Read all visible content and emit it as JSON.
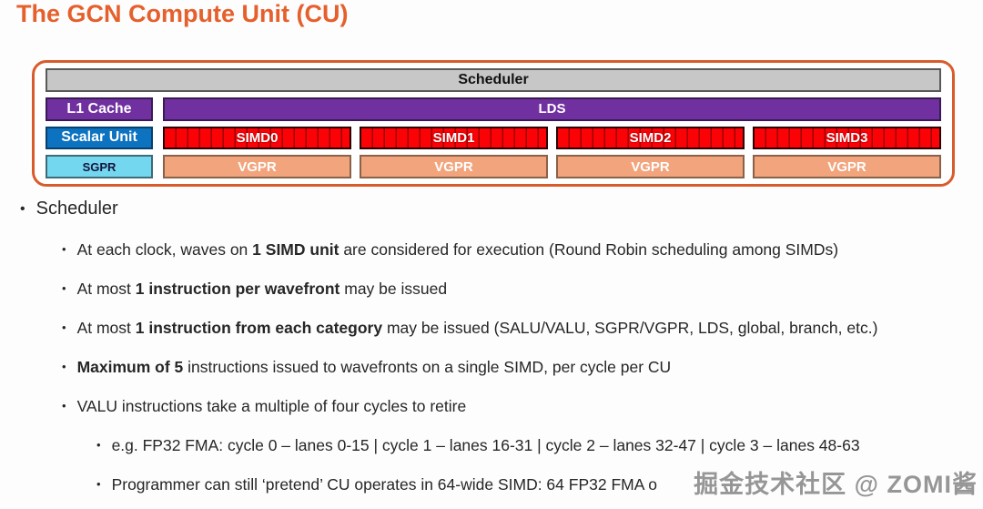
{
  "title": "The GCN Compute Unit (CU)",
  "diagram": {
    "scheduler_label": "Scheduler",
    "l1_label": "L1 Cache",
    "lds_label": "LDS",
    "scalar_label": "Scalar Unit",
    "sgpr_label": "SGPR",
    "simd_labels": [
      "SIMD0",
      "SIMD1",
      "SIMD2",
      "SIMD3"
    ],
    "vgpr_label": "VGPR",
    "colors": {
      "outer_border": "#d85c2b",
      "scheduler_fill": "#c7c7c7",
      "purple_fill": "#7030a0",
      "blue_fill": "#0d72c0",
      "cyan_fill": "#74d7f0",
      "simd_red_fill": "#fb0207",
      "vgpr_salmon_fill": "#f2a47d",
      "title_orange": "#e5602c"
    }
  },
  "bullets": {
    "heading": "Scheduler",
    "items": [
      {
        "level": 2,
        "segments": [
          {
            "t": "At each clock, waves on ",
            "b": false
          },
          {
            "t": "1 SIMD unit",
            "b": true
          },
          {
            "t": " are considered for execution (Round Robin scheduling among SIMDs)",
            "b": false
          }
        ]
      },
      {
        "level": 2,
        "segments": [
          {
            "t": "At most ",
            "b": false
          },
          {
            "t": "1 instruction per wavefront",
            "b": true
          },
          {
            "t": " may be issued",
            "b": false
          }
        ]
      },
      {
        "level": 2,
        "segments": [
          {
            "t": "At most ",
            "b": false
          },
          {
            "t": "1 instruction from each category",
            "b": true
          },
          {
            "t": " may be issued (SALU/VALU, SGPR/VGPR, LDS, global, branch, etc.)",
            "b": false
          }
        ]
      },
      {
        "level": 2,
        "segments": [
          {
            "t": "Maximum of 5",
            "b": true
          },
          {
            "t": " instructions issued to wavefronts on a single SIMD, per cycle per CU",
            "b": false
          }
        ]
      },
      {
        "level": 2,
        "segments": [
          {
            "t": "VALU instructions take a multiple of four cycles to retire",
            "b": false
          }
        ]
      },
      {
        "level": 3,
        "segments": [
          {
            "t": "e.g. FP32 FMA: cycle 0 – lanes 0-15 | cycle 1 – lanes 16-31 | cycle 2 – lanes 32-47 | cycle 3 – lanes 48-63",
            "b": false
          }
        ]
      },
      {
        "level": 3,
        "segments": [
          {
            "t": "Programmer can still ‘pretend’ CU operates in 64-wide SIMD: 64 FP32 FMA o",
            "b": false
          }
        ]
      }
    ]
  },
  "watermark": "掘金技术社区 @ ZOMI酱"
}
